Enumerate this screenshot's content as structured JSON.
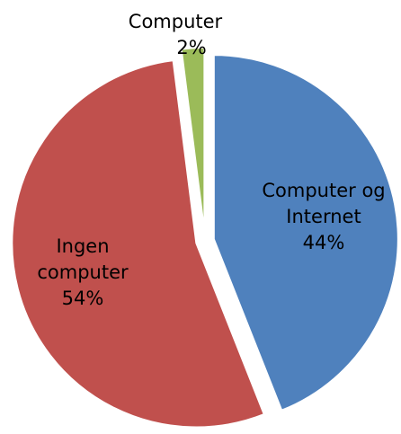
{
  "chart_data": {
    "type": "pie",
    "categories": [
      "Computer og Internet",
      "Ingen computer",
      "Computer"
    ],
    "values": [
      44,
      54,
      2
    ],
    "value_labels": [
      "44%",
      "54%",
      "2%"
    ],
    "colors": [
      "#4f81bd",
      "#c0504d",
      "#9bbb59"
    ]
  }
}
